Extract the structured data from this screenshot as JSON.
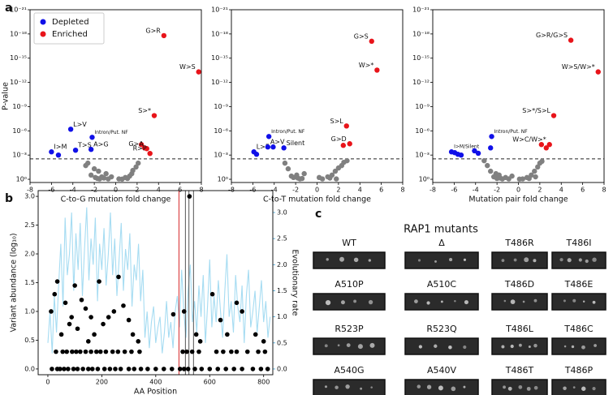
{
  "panel_labels": [
    "a",
    "b",
    "c"
  ],
  "chart_data": [
    {
      "type": "scatter",
      "xlabel": "C-to-G mutation fold change",
      "ylabel": "P-value",
      "xlim": [
        -8,
        8
      ],
      "xticks": [
        -8,
        -6,
        -4,
        -2,
        0,
        2,
        4,
        6,
        8
      ],
      "ylog": true,
      "ylim": [
        2.5,
        1e-21
      ],
      "yticks": [
        {
          "value": 1e-21,
          "label": "10⁻²¹"
        },
        {
          "value": 1e-18,
          "label": "10⁻¹⁸"
        },
        {
          "value": 1e-15,
          "label": "10⁻¹⁵"
        },
        {
          "value": 1e-12,
          "label": "10⁻¹²"
        },
        {
          "value": 1e-09,
          "label": "10⁻⁹"
        },
        {
          "value": 1e-06,
          "label": "10⁻⁶"
        },
        {
          "value": 0.001,
          "label": "10⁻³"
        },
        {
          "value": 1,
          "label": "10⁰"
        }
      ],
      "threshold": 0.003,
      "legend": "upper left",
      "series": [
        {
          "name": "Depleted",
          "color": "#1010e8",
          "x": [
            -6.0,
            -5.35,
            -4.2,
            -3.75,
            -2.2,
            -2.3
          ],
          "values": [
            0.0004,
            0.001,
            6.3e-07,
            0.00025,
            6.3e-06,
            0.0002
          ],
          "labels": [
            "I>M",
            null,
            "L>V",
            "T>S",
            "Intron/Put. NF",
            "A>G"
          ]
        },
        {
          "name": "Enriched",
          "color": "#e8141a",
          "x": [
            4.5,
            7.75,
            3.6,
            2.4,
            2.7,
            2.9,
            3.2
          ],
          "values": [
            1.6e-18,
            5e-14,
            1.3e-08,
            5e-05,
            0.00013,
            0.00016,
            0.00063
          ],
          "labels": [
            "G>R",
            "W>S",
            "S>*",
            null,
            null,
            "G>A",
            "R>P"
          ]
        },
        {
          "color": "#808080",
          "x": [
            -2.8,
            -2.6,
            -2.3,
            -2.0,
            -1.9,
            -1.7,
            -1.5,
            -1.3,
            -1.1,
            -0.9,
            -0.7,
            -1.6,
            0.3,
            0.9,
            1.3,
            1.6,
            1.9,
            2.1,
            1.1,
            -0.4,
            1.5,
            0.6
          ],
          "values": [
            0.02,
            0.01,
            0.3,
            0.05,
            0.6,
            0.8,
            0.9,
            0.5,
            0.7,
            0.2,
            0.9,
            0.1,
            0.9,
            0.6,
            0.4,
            0.08,
            0.03,
            0.01,
            0.8,
            0.5,
            0.2,
            0.95
          ]
        }
      ]
    },
    {
      "type": "scatter",
      "xlabel": "C-to-T mutation fold change",
      "xlim": [
        -8,
        8
      ],
      "xticks": [
        -8,
        -6,
        -4,
        -2,
        0,
        2,
        4,
        6,
        8
      ],
      "ylog": true,
      "ylim": [
        2.5,
        1e-21
      ],
      "yticks": [
        {
          "value": 1e-21,
          "label": "10⁻²¹"
        },
        {
          "value": 1e-18,
          "label": "10⁻¹⁸"
        },
        {
          "value": 1e-15,
          "label": "10⁻¹⁵"
        },
        {
          "value": 1e-12,
          "label": "10⁻¹²"
        },
        {
          "value": 1e-09,
          "label": "10⁻⁹"
        },
        {
          "value": 1e-06,
          "label": "10⁻⁶"
        },
        {
          "value": 0.001,
          "label": "10⁻³"
        },
        {
          "value": 1,
          "label": "10⁰"
        }
      ],
      "threshold": 0.003,
      "series": [
        {
          "color": "#1010e8",
          "x": [
            -5.9,
            -5.65,
            -4.6,
            -4.1,
            -4.5,
            -3.1
          ],
          "values": [
            0.0004,
            0.0008,
            0.0001,
            0.0001,
            5e-06,
            0.00013
          ],
          "labels": [
            "L>F",
            null,
            "A>V",
            null,
            "Intron/Put. NF",
            "Silent"
          ]
        },
        {
          "color": "#e8141a",
          "x": [
            5.1,
            5.6,
            2.75,
            2.45,
            3.05
          ],
          "values": [
            8e-18,
            3e-14,
            2.5e-07,
            6.3e-05,
            4e-05
          ],
          "labels": [
            "G>S",
            "W>*",
            "S>L",
            null,
            "G>D"
          ]
        },
        {
          "color": "#808080",
          "x": [
            -3.0,
            -2.7,
            -2.2,
            -1.9,
            -1.6,
            -1.4,
            -1.2,
            -1.8,
            0.5,
            1.0,
            1.4,
            1.7,
            2.0,
            2.3,
            2.5,
            2.8,
            1.2,
            0.2,
            -2.4,
            1.8
          ],
          "values": [
            0.01,
            0.05,
            0.6,
            0.3,
            0.9,
            0.8,
            0.2,
            0.7,
            0.9,
            0.5,
            0.3,
            0.1,
            0.04,
            0.02,
            0.008,
            0.005,
            0.7,
            0.6,
            0.4,
            0.9
          ]
        }
      ]
    },
    {
      "type": "scatter",
      "xlabel": "Mutation pair fold change",
      "xlim": [
        -8,
        8
      ],
      "xticks": [
        -8,
        -6,
        -4,
        -2,
        0,
        2,
        4,
        6,
        8
      ],
      "ylog": true,
      "ylim": [
        2.5,
        1e-21
      ],
      "yticks": [
        {
          "value": 1e-21,
          "label": "10⁻²¹"
        },
        {
          "value": 1e-18,
          "label": "10⁻¹⁸"
        },
        {
          "value": 1e-15,
          "label": "10⁻¹⁵"
        },
        {
          "value": 1e-12,
          "label": "10⁻¹²"
        },
        {
          "value": 1e-09,
          "label": "10⁻⁹"
        },
        {
          "value": 1e-06,
          "label": "10⁻⁶"
        },
        {
          "value": 0.001,
          "label": "10⁻³"
        },
        {
          "value": 1,
          "label": "10⁰"
        }
      ],
      "threshold": 0.003,
      "series": [
        {
          "color": "#1010e8",
          "x": [
            -6.25,
            -5.95,
            -5.65,
            -5.35,
            -4.1,
            -3.75,
            -2.5,
            -2.6
          ],
          "values": [
            0.0004,
            0.0005,
            0.0008,
            0.001,
            0.0003,
            0.0006,
            5e-06,
            0.00013
          ],
          "labels": [
            "I>M/Silent",
            null,
            null,
            null,
            null,
            null,
            "Intron/Put. NF",
            null
          ]
        },
        {
          "color": "#e8141a",
          "x": [
            4.9,
            7.45,
            3.3,
            2.15,
            2.6,
            2.9
          ],
          "values": [
            6e-18,
            5e-14,
            1.3e-08,
            5e-05,
            0.00013,
            5e-05
          ],
          "labels": [
            "G>R/G>S",
            "W>S/W>*",
            "S>*/S>L",
            null,
            null,
            "W>C/W>*"
          ]
        },
        {
          "color": "#808080",
          "x": [
            -3.2,
            -2.9,
            -2.6,
            -2.3,
            -2.0,
            -1.8,
            -1.5,
            -1.2,
            -0.9,
            -1.7,
            -0.6,
            0.4,
            0.8,
            1.2,
            1.5,
            1.8,
            2.0,
            2.2,
            1.0,
            -2.1,
            1.6,
            0.1
          ],
          "values": [
            0.005,
            0.02,
            0.1,
            0.5,
            0.8,
            0.3,
            0.9,
            0.6,
            0.9,
            0.7,
            0.4,
            0.9,
            0.6,
            0.3,
            0.1,
            0.03,
            0.01,
            0.006,
            0.8,
            0.2,
            0.5,
            0.95
          ]
        }
      ]
    },
    {
      "type": "scatter",
      "xlabel": "AA Position",
      "ylabel": "Variant abundance (log₁₀)",
      "y2label": "Evolutionary rate",
      "y2color": "#3b9fd0",
      "xlim": [
        -36,
        834
      ],
      "xticks": [
        0,
        200,
        400,
        600,
        800
      ],
      "ylim": [
        -0.1,
        3.1
      ],
      "yticks": [
        {
          "value": 0,
          "label": "0.0"
        },
        0.5,
        {
          "value": 1,
          "label": "1.0"
        },
        1.5,
        {
          "value": 2,
          "label": "2.0"
        },
        2.5,
        {
          "value": 3,
          "label": "3.0"
        }
      ],
      "y2lim": [
        -0.11,
        3.42
      ],
      "y2ticks": [
        {
          "value": 0,
          "label": "0.0"
        },
        0.5,
        {
          "value": 1,
          "label": "1.0"
        },
        1.5,
        {
          "value": 2,
          "label": "2.0"
        },
        2.5,
        {
          "value": 3,
          "label": "3.0"
        }
      ],
      "reference_lines": [
        {
          "x": 486,
          "color": "#d62728"
        },
        {
          "x": 510,
          "color": "#555555"
        },
        {
          "x": 523,
          "color": "#555555"
        },
        {
          "x": 540,
          "color": "#555555"
        }
      ],
      "series": [
        {
          "type": "line",
          "axis": "y2",
          "color": "#a6dcf2",
          "x": [
            0,
            8,
            16,
            24,
            32,
            40,
            48,
            56,
            64,
            72,
            80,
            88,
            96,
            104,
            112,
            120,
            128,
            136,
            144,
            152,
            160,
            168,
            176,
            184,
            192,
            200,
            208,
            216,
            224,
            232,
            240,
            248,
            256,
            264,
            272,
            280,
            288,
            296,
            304,
            312,
            320,
            328,
            336,
            344,
            352,
            360,
            368,
            376,
            384,
            392,
            400,
            408,
            416,
            424,
            432,
            440,
            448,
            456,
            464,
            472,
            480,
            488,
            496,
            504,
            512,
            520,
            528,
            536,
            544,
            552,
            560,
            568,
            576,
            584,
            592,
            600,
            608,
            616,
            624,
            632,
            640,
            648,
            656,
            664,
            672,
            680,
            688,
            696,
            704,
            712,
            720,
            728,
            736,
            744,
            752,
            760,
            768,
            776,
            784,
            792,
            800,
            808,
            816,
            824
          ],
          "values": [
            0.5,
            1.1,
            0.3,
            1.4,
            0.7,
            1.6,
            2.4,
            1.2,
            2.9,
            1.8,
            2.2,
            3.0,
            1.5,
            2.6,
            1.9,
            2.8,
            1.4,
            2.3,
            3.1,
            1.7,
            2.5,
            2.0,
            2.9,
            1.3,
            2.4,
            1.9,
            2.7,
            1.6,
            2.2,
            3.0,
            1.8,
            2.5,
            1.4,
            2.1,
            2.8,
            1.5,
            2.3,
            1.9,
            2.6,
            1.2,
            2.0,
            1.7,
            2.4,
            1.3,
            1.9,
            0.6,
            1.1,
            0.4,
            0.9,
            1.2,
            0.5,
            0.8,
            1.0,
            0.3,
            0.7,
            1.3,
            0.6,
            0.9,
            0.4,
            1.1,
            1.4,
            0.8,
            1.9,
            1.1,
            0.6,
            1.5,
            2.0,
            0.9,
            1.3,
            0.7,
            1.6,
            1.0,
            1.8,
            0.5,
            1.2,
            2.1,
            0.8,
            1.4,
            0.9,
            1.7,
            1.1,
            0.6,
            1.5,
            2.2,
            1.0,
            1.3,
            0.7,
            1.8,
            1.2,
            0.9,
            1.6,
            0.5,
            1.4,
            1.9,
            0.8,
            1.1,
            1.5,
            0.7,
            1.2,
            1.7,
            0.9,
            1.3,
            0.6,
            1.0
          ]
        },
        {
          "color": "#000000",
          "x": [
            15,
            35,
            45,
            60,
            75,
            95,
            110,
            130,
            150,
            165,
            185,
            210,
            230,
            250,
            270,
            300,
            320,
            345,
            370,
            400,
            430,
            460,
            490,
            505,
            520,
            545,
            570,
            600,
            630,
            660,
            690,
            720,
            760,
            790,
            815,
            30,
            55,
            70,
            90,
            105,
            120,
            140,
            160,
            180,
            195,
            215,
            240,
            260,
            285,
            310,
            340,
            500,
            515,
            535,
            560,
            625,
            650,
            680,
            700,
            740,
            780,
            805,
            12,
            25,
            35,
            50,
            65,
            80,
            88,
            100,
            110,
            125,
            140,
            150,
            160,
            172,
            190,
            205,
            225,
            245,
            262,
            280,
            300,
            315,
            335,
            465,
            505,
            525,
            550,
            565,
            610,
            640,
            665,
            700,
            720,
            770,
            800
          ],
          "values": [
            0,
            0,
            0,
            0,
            0,
            0,
            0,
            0,
            0,
            0,
            0,
            0,
            0,
            0,
            0,
            0,
            0,
            0,
            0,
            0,
            0,
            0,
            0,
            0,
            0,
            0,
            0,
            0,
            0,
            0,
            0,
            0,
            0,
            0,
            0,
            0.3,
            0.3,
            0.3,
            0.3,
            0.3,
            0.3,
            0.3,
            0.3,
            0.3,
            0.3,
            0.3,
            0.3,
            0.3,
            0.3,
            0.3,
            0.3,
            0.3,
            0.3,
            0.3,
            0.3,
            0.3,
            0.3,
            0.3,
            0.3,
            0.3,
            0.3,
            0.3,
            1.0,
            1.3,
            1.52,
            0.6,
            1.15,
            0.78,
            0.9,
            1.45,
            0.7,
            1.2,
            1.05,
            0.48,
            0.9,
            0.6,
            1.52,
            0.78,
            0.9,
            1.0,
            1.6,
            1.1,
            0.85,
            0.6,
            0.48,
            0.95,
            1.0,
            3.0,
            0.6,
            0.48,
            1.3,
            0.85,
            0.6,
            1.15,
            1.0,
            0.6,
            0.48
          ]
        }
      ]
    }
  ],
  "gel_panel": {
    "title": "RAP1 mutants",
    "labels": [
      "WT",
      "Δ",
      "T486R",
      "T486I",
      "A510P",
      "A510C",
      "T486D",
      "T486E",
      "R523P",
      "R523Q",
      "T486L",
      "T486C",
      "A540G",
      "A540V",
      "T486T",
      "T486P"
    ]
  }
}
